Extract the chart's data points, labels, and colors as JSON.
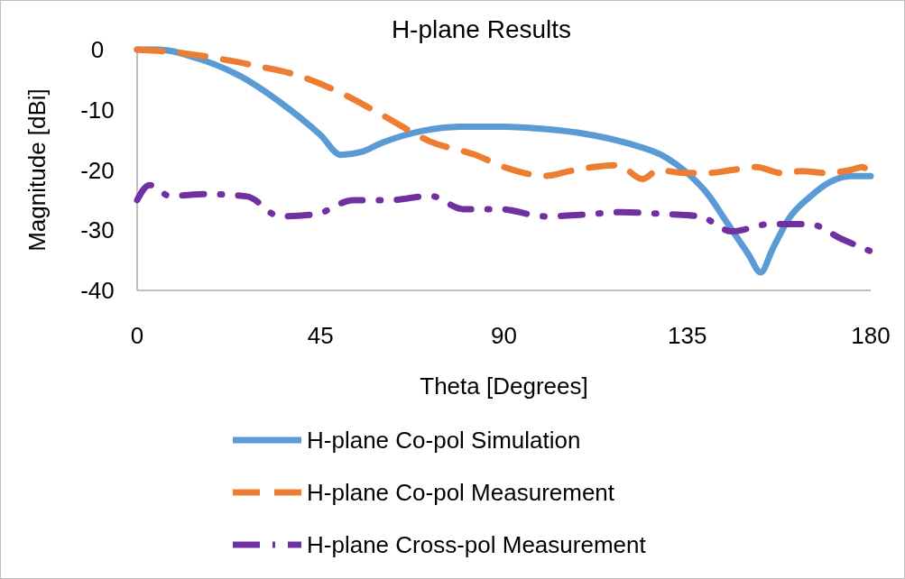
{
  "chart_data": {
    "type": "line",
    "title": "H-plane Results",
    "xlabel": "Theta [Degrees]",
    "ylabel": "Magnitude [dBi]",
    "xlim": [
      0,
      180
    ],
    "xticks": [
      0,
      45,
      90,
      135,
      180
    ],
    "ylim": [
      -40,
      0
    ],
    "yticks": [
      0,
      -10,
      -20,
      -30,
      -40
    ],
    "grid": false,
    "legend": "bottom",
    "marker": "none",
    "series": [
      {
        "name": "H-plane Co-pol Simulation",
        "color": "#5b9bd5",
        "line_style": "solid",
        "x": [
          0,
          5,
          15,
          25,
          35,
          45,
          50,
          55,
          60,
          70,
          80,
          90,
          100,
          110,
          120,
          130,
          135,
          140,
          145,
          150,
          153,
          156,
          160,
          165,
          170,
          175,
          180
        ],
        "values": [
          0,
          0,
          -1.5,
          -4.3,
          -8.7,
          -14.2,
          -17.5,
          -17,
          -15.5,
          -13.5,
          -12.8,
          -12.8,
          -13.2,
          -14,
          -15.5,
          -18,
          -20.5,
          -24,
          -29,
          -34,
          -37,
          -33,
          -28,
          -24.5,
          -22,
          -21,
          -21
        ]
      },
      {
        "name": "H-plane Co-pol Measurement",
        "color": "#ed7d31",
        "line_style": "dashed",
        "x": [
          0,
          10,
          20,
          30,
          39,
          50,
          61,
          72,
          83,
          90,
          95,
          100,
          106,
          112,
          118,
          124,
          128,
          134,
          140,
          146,
          152,
          158,
          163,
          169,
          175,
          178,
          180
        ],
        "values": [
          0,
          -0.5,
          -1.5,
          -2.8,
          -4.2,
          -7.2,
          -11.2,
          -15.3,
          -17.5,
          -19.5,
          -20.5,
          -21,
          -20.2,
          -19.5,
          -19.2,
          -21.5,
          -20,
          -20.5,
          -20.5,
          -20,
          -19.5,
          -20.5,
          -20.2,
          -20.5,
          -20,
          -19.5,
          -21
        ]
      },
      {
        "name": "H-plane Cross-pol Measurement",
        "color": "#7030a0",
        "line_style": "dashdot",
        "x": [
          0,
          3,
          8,
          17,
          27,
          35,
          44,
          53,
          62,
          72,
          80,
          89,
          100,
          110,
          119,
          129,
          138,
          146,
          155,
          165,
          173,
          180
        ],
        "values": [
          -25,
          -22.5,
          -24.3,
          -24,
          -24.4,
          -27.7,
          -27.3,
          -25,
          -25,
          -24.3,
          -26.5,
          -26.5,
          -27.7,
          -27.4,
          -27,
          -27.3,
          -27.7,
          -30.2,
          -29,
          -29,
          -31.5,
          -33.5
        ]
      }
    ]
  }
}
